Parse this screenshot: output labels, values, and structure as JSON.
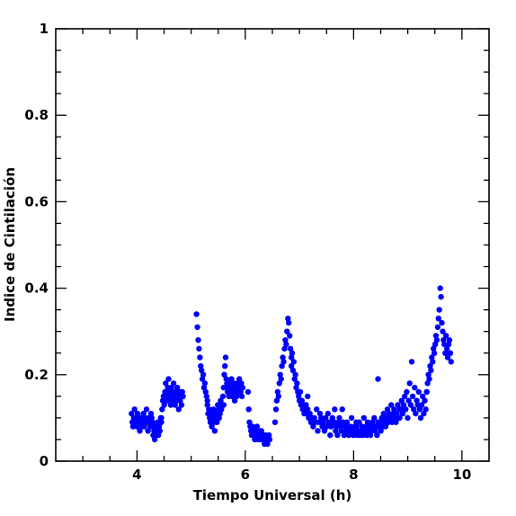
{
  "chart_data": {
    "type": "scatter",
    "title": "",
    "xlabel": "Tiempo Universal (h)",
    "ylabel": "Indice de Cintilación",
    "xlim": [
      2.5,
      10.5
    ],
    "ylim": [
      0,
      1
    ],
    "x_ticks": [
      4,
      6,
      8,
      10
    ],
    "x_tick_labels": [
      "4",
      "6",
      "8",
      "10"
    ],
    "y_ticks": [
      0,
      0.2,
      0.4,
      0.6,
      0.8,
      1
    ],
    "y_tick_labels": [
      "0",
      "0.2",
      "0.4",
      "0.6",
      "0.8",
      "1"
    ],
    "grid": false,
    "legend": "none",
    "marker_color": "#0000ff",
    "series": [
      {
        "segments": [
          {
            "x0": 3.9,
            "x1": 4.3,
            "values": [
              0.11,
              0.09,
              0.08,
              0.1,
              0.12,
              0.09,
              0.1,
              0.08,
              0.11,
              0.09,
              0.1,
              0.07,
              0.09,
              0.1,
              0.08,
              0.09,
              0.11,
              0.08,
              0.1,
              0.09,
              0.12,
              0.09,
              0.07,
              0.1,
              0.09,
              0.08,
              0.11,
              0.1,
              0.09,
              0.08
            ]
          },
          {
            "x0": 4.3,
            "x1": 4.45,
            "values": [
              0.06,
              0.07,
              0.05,
              0.08,
              0.06,
              0.07,
              0.09,
              0.06,
              0.08,
              0.07,
              0.1,
              0.09
            ]
          },
          {
            "x0": 4.45,
            "x1": 4.85,
            "values": [
              0.1,
              0.12,
              0.14,
              0.15,
              0.13,
              0.16,
              0.18,
              0.15,
              0.14,
              0.17,
              0.19,
              0.16,
              0.15,
              0.13,
              0.17,
              0.14,
              0.16,
              0.18,
              0.15,
              0.13,
              0.16,
              0.14,
              0.17,
              0.15,
              0.12,
              0.16,
              0.14,
              0.15,
              0.13,
              0.16,
              0.15
            ]
          },
          {
            "x0": 5.1,
            "x1": 5.3,
            "values": [
              0.34,
              0.31,
              0.28,
              0.26,
              0.24,
              0.22,
              0.21,
              0.19,
              0.2,
              0.17,
              0.18,
              0.16,
              0.15,
              0.14
            ]
          },
          {
            "x0": 5.3,
            "x1": 5.6,
            "values": [
              0.13,
              0.11,
              0.12,
              0.1,
              0.09,
              0.11,
              0.08,
              0.1,
              0.12,
              0.09,
              0.07,
              0.11,
              0.1,
              0.09,
              0.13,
              0.12,
              0.1,
              0.11,
              0.14,
              0.12,
              0.13,
              0.15,
              0.13
            ]
          },
          {
            "x0": 5.6,
            "x1": 5.95,
            "values": [
              0.17,
              0.2,
              0.22,
              0.24,
              0.19,
              0.18,
              0.16,
              0.17,
              0.15,
              0.18,
              0.17,
              0.16,
              0.19,
              0.15,
              0.17,
              0.16,
              0.18,
              0.14,
              0.17,
              0.16,
              0.15,
              0.18,
              0.17,
              0.16,
              0.19,
              0.17,
              0.16,
              0.18,
              0.15,
              0.17
            ]
          },
          {
            "x0": 6.05,
            "x1": 6.45,
            "values": [
              0.16,
              0.12,
              0.09,
              0.08,
              0.07,
              0.06,
              0.08,
              0.07,
              0.06,
              0.05,
              0.07,
              0.06,
              0.08,
              0.05,
              0.06,
              0.07,
              0.06,
              0.05,
              0.07,
              0.06,
              0.05,
              0.06,
              0.04,
              0.05,
              0.06,
              0.05,
              0.04,
              0.05,
              0.06,
              0.05
            ]
          },
          {
            "x0": 6.55,
            "x1": 6.85,
            "values": [
              0.09,
              0.12,
              0.14,
              0.16,
              0.15,
              0.18,
              0.2,
              0.19,
              0.22,
              0.24,
              0.23,
              0.26,
              0.28,
              0.27,
              0.3,
              0.33,
              0.32,
              0.29,
              0.26,
              0.24
            ]
          },
          {
            "x0": 6.85,
            "x1": 7.15,
            "values": [
              0.22,
              0.25,
              0.21,
              0.23,
              0.19,
              0.2,
              0.17,
              0.18,
              0.16,
              0.15,
              0.14,
              0.16,
              0.13,
              0.14,
              0.12,
              0.13,
              0.11,
              0.12,
              0.13,
              0.11,
              0.15
            ]
          },
          {
            "x0": 7.15,
            "x1": 7.65,
            "values": [
              0.12,
              0.1,
              0.11,
              0.09,
              0.1,
              0.08,
              0.1,
              0.09,
              0.12,
              0.07,
              0.09,
              0.11,
              0.1,
              0.08,
              0.09,
              0.07,
              0.1,
              0.08,
              0.11,
              0.09,
              0.06,
              0.08,
              0.1,
              0.09,
              0.12
            ]
          },
          {
            "x0": 7.65,
            "x1": 8.05,
            "values": [
              0.09,
              0.07,
              0.08,
              0.06,
              0.09,
              0.1,
              0.08,
              0.07,
              0.12,
              0.09,
              0.06,
              0.08,
              0.07,
              0.09,
              0.08,
              0.06,
              0.07,
              0.08,
              0.1,
              0.07,
              0.06,
              0.08,
              0.07,
              0.09
            ]
          },
          {
            "x0": 8.05,
            "x1": 8.45,
            "values": [
              0.08,
              0.06,
              0.07,
              0.09,
              0.06,
              0.07,
              0.08,
              0.06,
              0.1,
              0.07,
              0.08,
              0.06,
              0.09,
              0.07,
              0.08,
              0.06,
              0.07,
              0.09,
              0.08,
              0.1,
              0.07,
              0.08,
              0.06,
              0.09
            ]
          },
          {
            "x0": 8.45,
            "x1": 8.85,
            "values": [
              0.19,
              0.08,
              0.09,
              0.07,
              0.1,
              0.08,
              0.11,
              0.09,
              0.08,
              0.1,
              0.12,
              0.09,
              0.11,
              0.1,
              0.13,
              0.09,
              0.11,
              0.12,
              0.1,
              0.09,
              0.11,
              0.13,
              0.1,
              0.12
            ]
          },
          {
            "x0": 8.85,
            "x1": 9.35,
            "values": [
              0.1,
              0.12,
              0.14,
              0.11,
              0.13,
              0.15,
              0.12,
              0.16,
              0.1,
              0.14,
              0.18,
              0.13,
              0.23,
              0.15,
              0.12,
              0.17,
              0.11,
              0.14,
              0.13,
              0.16,
              0.12,
              0.1,
              0.13,
              0.15,
              0.11,
              0.14,
              0.12,
              0.16
            ]
          },
          {
            "x0": 9.35,
            "x1": 9.8,
            "values": [
              0.16,
              0.18,
              0.2,
              0.19,
              0.22,
              0.21,
              0.24,
              0.23,
              0.26,
              0.25,
              0.27,
              0.29,
              0.28,
              0.31,
              0.33,
              0.35,
              0.4,
              0.38,
              0.32,
              0.3,
              0.28,
              0.27,
              0.25,
              0.29,
              0.26,
              0.24,
              0.27,
              0.28,
              0.25,
              0.23
            ]
          }
        ]
      }
    ]
  }
}
